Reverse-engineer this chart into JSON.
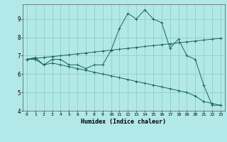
{
  "title": "",
  "xlabel": "Humidex (Indice chaleur)",
  "bg_color": "#b3e8e8",
  "grid_color": "#88ccbb",
  "line_color": "#1a6655",
  "xlim": [
    -0.5,
    23.5
  ],
  "ylim": [
    4,
    9.8
  ],
  "yticks": [
    4,
    5,
    6,
    7,
    8,
    9
  ],
  "xticks": [
    0,
    1,
    2,
    3,
    4,
    5,
    6,
    7,
    8,
    9,
    10,
    11,
    12,
    13,
    14,
    15,
    16,
    17,
    18,
    19,
    20,
    21,
    22,
    23
  ],
  "line1_x": [
    0,
    1,
    2,
    3,
    4,
    5,
    6,
    7,
    8,
    9,
    10,
    11,
    12,
    13,
    14,
    15,
    16,
    17,
    18,
    19,
    20,
    21,
    22,
    23
  ],
  "line1_y": [
    6.8,
    6.9,
    6.5,
    6.8,
    6.8,
    6.5,
    6.5,
    6.3,
    6.5,
    6.5,
    7.3,
    8.5,
    9.3,
    9.0,
    9.5,
    9.0,
    8.8,
    7.4,
    7.9,
    7.0,
    6.8,
    5.4,
    4.3,
    4.3
  ],
  "line2_x": [
    0,
    1,
    2,
    3,
    4,
    5,
    6,
    7,
    8,
    9,
    10,
    11,
    12,
    13,
    14,
    15,
    16,
    17,
    18,
    19,
    20,
    21,
    22,
    23
  ],
  "line2_y": [
    6.8,
    6.85,
    6.9,
    6.95,
    7.0,
    7.05,
    7.1,
    7.15,
    7.2,
    7.25,
    7.3,
    7.35,
    7.4,
    7.45,
    7.5,
    7.55,
    7.6,
    7.65,
    7.7,
    7.75,
    7.8,
    7.85,
    7.9,
    7.95
  ],
  "line3_x": [
    0,
    1,
    2,
    3,
    4,
    5,
    6,
    7,
    8,
    9,
    10,
    11,
    12,
    13,
    14,
    15,
    16,
    17,
    18,
    19,
    20,
    21,
    22,
    23
  ],
  "line3_y": [
    6.8,
    6.8,
    6.5,
    6.6,
    6.5,
    6.4,
    6.3,
    6.2,
    6.1,
    6.0,
    5.9,
    5.8,
    5.7,
    5.6,
    5.5,
    5.4,
    5.3,
    5.2,
    5.1,
    5.0,
    4.8,
    4.5,
    4.4,
    4.3
  ]
}
